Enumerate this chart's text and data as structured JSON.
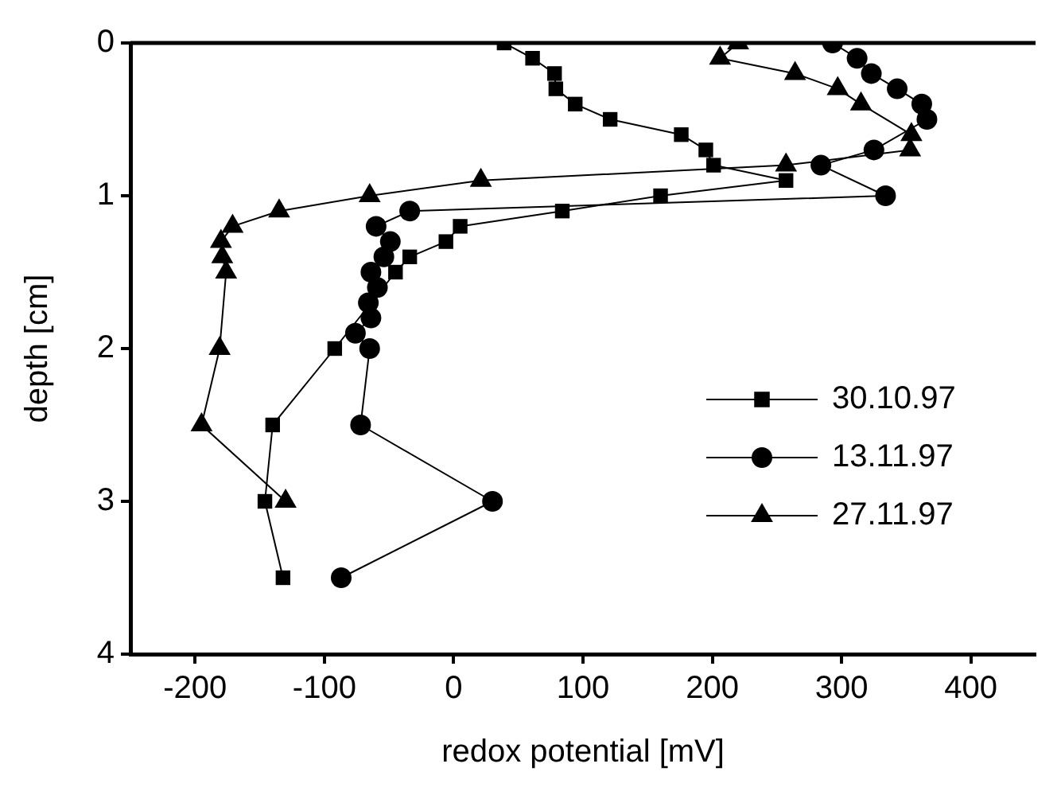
{
  "chart_data": {
    "type": "line",
    "xlabel": "redox potential [mV]",
    "ylabel": "depth [cm]",
    "xlim": [
      -250,
      450
    ],
    "xticks": [
      -200,
      -100,
      0,
      100,
      200,
      300,
      400
    ],
    "ylim": [
      4,
      0
    ],
    "yticks": [
      0,
      1,
      2,
      3,
      4
    ],
    "grid": false,
    "legend": "right",
    "line_style": "solid",
    "series": [
      {
        "name": "30.10.97",
        "color": "#000000",
        "marker": "square",
        "x": [
          39,
          61,
          78,
          79,
          94,
          121,
          176,
          195,
          201,
          257,
          160,
          84,
          5,
          -6,
          -34,
          -45,
          -92,
          -140,
          -146,
          -132
        ],
        "values": [
          0,
          0.1,
          0.2,
          0.3,
          0.4,
          0.5,
          0.6,
          0.7,
          0.8,
          0.9,
          1.0,
          1.1,
          1.2,
          1.3,
          1.4,
          1.5,
          2.0,
          2.5,
          3.0,
          3.5
        ]
      },
      {
        "name": "13.11.97",
        "color": "#000000",
        "marker": "circle",
        "x": [
          293,
          312,
          323,
          343,
          362,
          366,
          325,
          284,
          334,
          -34,
          -60,
          -49,
          -54,
          -64,
          -59,
          -66,
          -64,
          -76,
          -65,
          -72,
          30,
          -87
        ],
        "values": [
          0,
          0.1,
          0.2,
          0.3,
          0.4,
          0.5,
          0.7,
          0.8,
          1.0,
          1.1,
          1.2,
          1.3,
          1.4,
          1.5,
          1.6,
          1.7,
          1.8,
          1.9,
          2.0,
          2.5,
          3.0,
          3.5
        ]
      },
      {
        "name": "27.11.97",
        "color": "#000000",
        "marker": "triangle",
        "x": [
          220,
          206,
          264,
          297,
          315,
          354,
          353,
          257,
          21,
          -65,
          -135,
          -171,
          -180,
          -179,
          -176,
          -181,
          -195,
          -130
        ],
        "values": [
          0,
          0.1,
          0.2,
          0.3,
          0.4,
          0.6,
          0.7,
          0.8,
          0.9,
          1.0,
          1.1,
          1.2,
          1.3,
          1.4,
          1.5,
          2.0,
          2.5,
          3.0
        ]
      }
    ]
  }
}
